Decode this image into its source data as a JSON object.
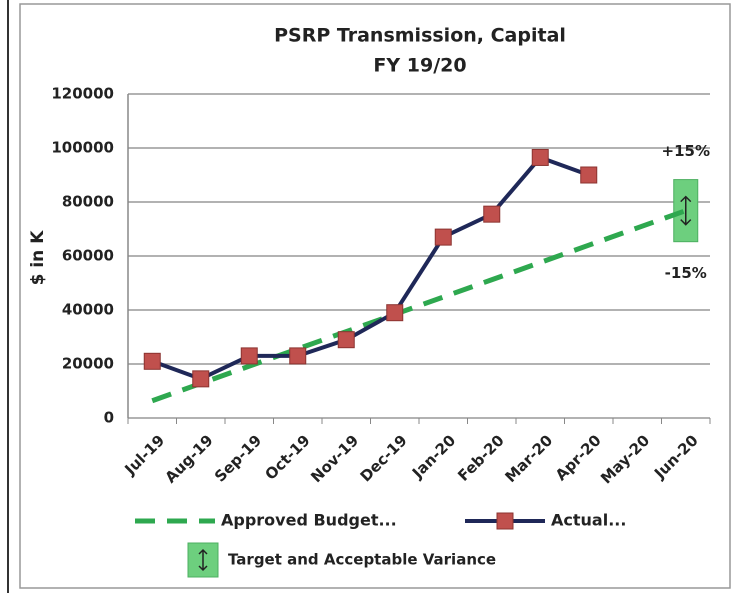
{
  "chart_data": {
    "type": "line",
    "title": "PSRP Transmission,  Capital",
    "subtitle": "FY 19/20",
    "ylabel": "$ in K",
    "categories": [
      "Jul-19",
      "Aug-19",
      "Sep-19",
      "Oct-19",
      "Nov-19",
      "Dec-19",
      "Jan-20",
      "Feb-20",
      "Mar-20",
      "Apr-20",
      "May-20",
      "Jun-20"
    ],
    "series": [
      {
        "name": "Approved Budget...",
        "color": "#2ea84f",
        "dashed": true,
        "values": [
          6400,
          12800,
          19200,
          25600,
          32000,
          38400,
          44800,
          51200,
          57600,
          64000,
          70400,
          76800
        ]
      },
      {
        "name": "Actual...",
        "color": "#1f2858",
        "marker_color": "#c0504d",
        "values": [
          21000,
          14500,
          23000,
          23000,
          29000,
          39000,
          67000,
          75500,
          96500,
          90000,
          null,
          null
        ]
      }
    ],
    "target_band": {
      "name": "Target and Acceptable Variance",
      "color": "#6dcf7e",
      "low": 65300,
      "high": 88300,
      "upper_label": "+15%",
      "lower_label": "-15%"
    },
    "ylim": [
      0,
      120000
    ],
    "yticks": [
      0,
      20000,
      40000,
      60000,
      80000,
      100000,
      120000
    ],
    "grid": true
  }
}
